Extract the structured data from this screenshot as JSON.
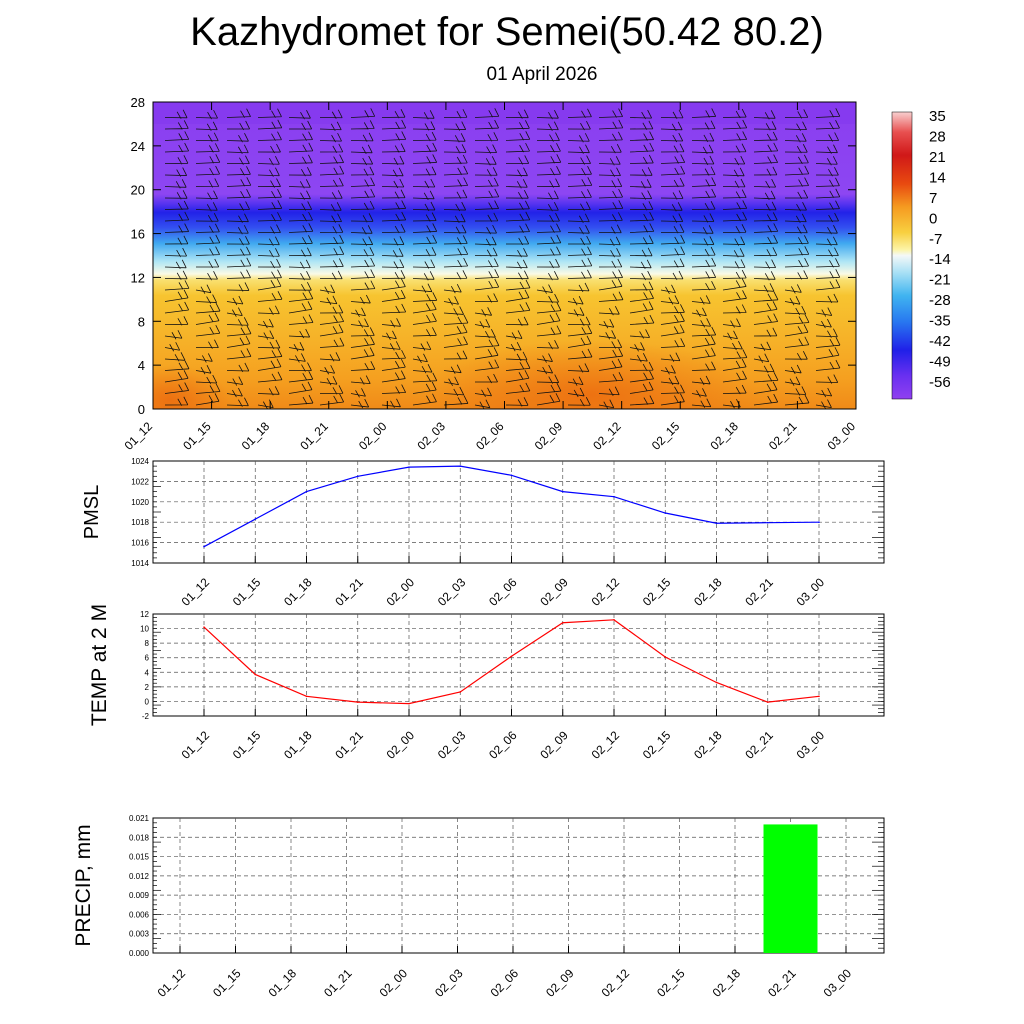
{
  "title": "Kazhydromet for Semei(50.42 80.2)",
  "subtitle": "01 April 2026",
  "time_labels": [
    "01_12",
    "01_15",
    "01_18",
    "01_21",
    "02_00",
    "02_03",
    "02_06",
    "02_09",
    "02_12",
    "02_15",
    "02_18",
    "02_21",
    "03_00"
  ],
  "chart_data": [
    {
      "id": "cross_section",
      "type": "heatmap",
      "ylim": [
        0,
        28
      ],
      "yticks": [
        0,
        4,
        8,
        12,
        16,
        20,
        24,
        28
      ],
      "colorbar_labels": [
        "35",
        "28",
        "21",
        "14",
        "7",
        "0",
        "-7",
        "-14",
        "-21",
        "-28",
        "-35",
        "-42",
        "-49",
        "-56"
      ],
      "colors": {
        "upper": "#8a3ef0",
        "deep_blue": "#2020e8",
        "mid_blue": "#3fa8f0",
        "light": "#f8f8e0",
        "yellow": "#f8d23a",
        "orange": "#f5a020",
        "dark_orange": "#ee7a12"
      }
    },
    {
      "id": "pmsl",
      "type": "line",
      "ylabel": "PMSL",
      "ylim": [
        1014,
        1024
      ],
      "yticks": [
        1014,
        1016,
        1018,
        1020,
        1022,
        1024
      ],
      "values": [
        1015.6,
        1018.3,
        1021.0,
        1022.5,
        1023.4,
        1023.5,
        1022.6,
        1021.0,
        1020.5,
        1018.9,
        1017.9,
        1017.95,
        1018.0
      ],
      "color": "#0000ff"
    },
    {
      "id": "temp2m",
      "type": "line",
      "ylabel": "TEMP at 2 M",
      "ylim": [
        -2,
        12
      ],
      "yticks": [
        -2,
        0,
        2,
        4,
        6,
        8,
        10,
        12
      ],
      "values": [
        10.2,
        3.7,
        0.7,
        -0.1,
        -0.3,
        1.3,
        6.2,
        10.8,
        11.2,
        6.1,
        2.6,
        -0.1,
        0.7
      ],
      "color": "#ff0000"
    },
    {
      "id": "precip",
      "type": "bar",
      "ylabel": "PRECIP, mm",
      "ylim": [
        0,
        0.021
      ],
      "yticks": [
        "0.000",
        "0.003",
        "0.006",
        "0.009",
        "0.012",
        "0.015",
        "0.018",
        "0.021"
      ],
      "values": [
        0,
        0,
        0,
        0,
        0,
        0,
        0,
        0,
        0,
        0,
        0,
        0.02,
        0
      ],
      "color": "#00ff00"
    }
  ]
}
